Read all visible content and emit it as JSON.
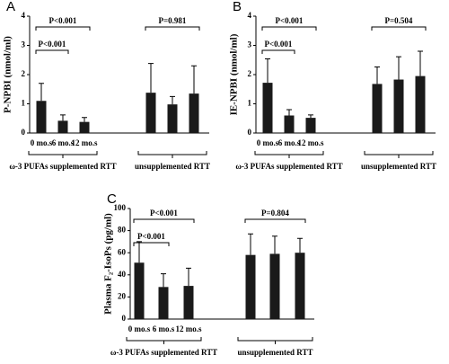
{
  "chart_data": [
    {
      "type": "bar",
      "panel": "A",
      "ylabel": "P-NPBI (nmol/ml)",
      "categories": [
        "0 mo.s",
        "6 mo.s",
        "12 mo.s",
        null,
        null,
        null
      ],
      "groups": [
        "ω-3 PUFAs supplemented RTT",
        "unsupplemented RTT"
      ],
      "values": [
        1.1,
        0.42,
        0.38,
        1.38,
        0.98,
        1.35
      ],
      "errors": [
        0.6,
        0.2,
        0.15,
        1.0,
        0.27,
        0.95
      ],
      "color": "#1a1a1a",
      "ylim": [
        0,
        4
      ],
      "yticks": [
        0,
        1,
        2,
        3,
        4
      ],
      "annotations": [
        "P<0.001",
        "P<0.001",
        "P=0.981"
      ]
    },
    {
      "type": "bar",
      "panel": "B",
      "ylabel": "IE-NPBI (nmol/ml)",
      "categories": [
        "0 mo.s",
        "6 mo.s",
        "12 mo.s",
        null,
        null,
        null
      ],
      "groups": [
        "ω-3 PUFAs supplemented RTT",
        "unsupplemented RTT"
      ],
      "values": [
        1.72,
        0.6,
        0.52,
        1.68,
        1.83,
        1.95
      ],
      "errors": [
        0.82,
        0.2,
        0.1,
        0.58,
        0.78,
        0.85
      ],
      "color": "#1a1a1a",
      "ylim": [
        0,
        4
      ],
      "yticks": [
        0,
        1,
        2,
        3,
        4
      ],
      "annotations": [
        "P<0.001",
        "P<0.001",
        "P=0.504"
      ]
    },
    {
      "type": "bar",
      "panel": "C",
      "ylabel": "Plasma F₂-IsoPs (pg/ml)",
      "categories": [
        "0 mo.s",
        "6 mo.s",
        "12 mo.s",
        null,
        null,
        null
      ],
      "groups": [
        "ω-3 PUFAs supplemented RTT",
        "unsupplemented RTT"
      ],
      "values": [
        51,
        29,
        30,
        58,
        59,
        60
      ],
      "errors": [
        19,
        12,
        16,
        19,
        16,
        13
      ],
      "color": "#1a1a1a",
      "ylim": [
        0,
        100
      ],
      "yticks": [
        0,
        20,
        40,
        60,
        80,
        100
      ],
      "annotations": [
        "P<0.001",
        "P<0.001",
        "P=0.804"
      ]
    }
  ]
}
